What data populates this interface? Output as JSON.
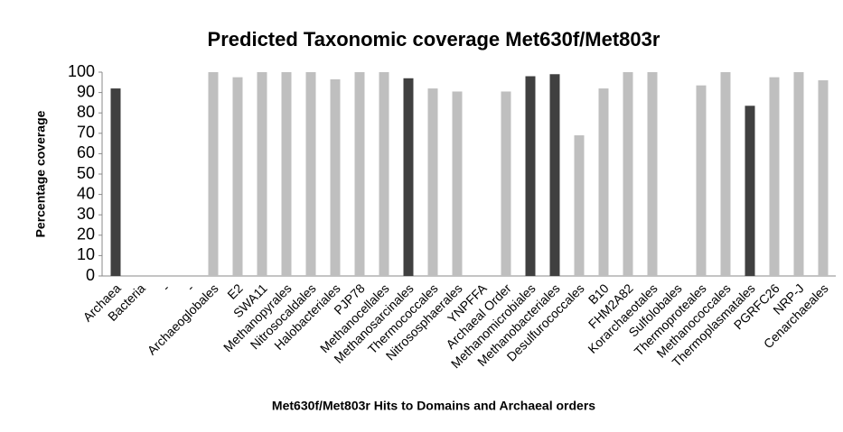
{
  "chart_data": {
    "type": "bar",
    "title": "Predicted Taxonomic coverage Met630f/Met803r",
    "x_label": "Met630f/Met803r Hits to Domains and Archaeal orders",
    "y_label": "Percentage coverage",
    "categories": [
      "Archaea",
      "Bacteria",
      "-",
      "-",
      "Archaeoglobales",
      "E2",
      "SWA11",
      "Methanopyrales",
      "Nitrosocaldales",
      "Halobacteriales",
      "PJP78",
      "Methanocellales",
      "Methanosarcinales",
      "Thermococcales",
      "Nitrososphaerales",
      "YNPFFA",
      "Archaeal Order",
      "Methanomicrobiales",
      "Methanobacteriales",
      "Desulfurococcales",
      "B10",
      "FHM2A82",
      "Korarchaeotales",
      "Sulfolobales",
      "Thermoproteales",
      "Methanococcales",
      "Thermoplasmatales",
      "PGRFC26",
      "NRP-J",
      "Cenarchaeales"
    ],
    "values": [
      92,
      0,
      0,
      0,
      100,
      97.5,
      100,
      100,
      100,
      96.5,
      100,
      100,
      97,
      92,
      90.5,
      0,
      90.5,
      98,
      99,
      69,
      92,
      100,
      100,
      0,
      93.5,
      100,
      83.5,
      97.5,
      100,
      96
    ],
    "colors": [
      "#404040",
      "#bfbfbf",
      "#bfbfbf",
      "#bfbfbf",
      "#bfbfbf",
      "#bfbfbf",
      "#bfbfbf",
      "#bfbfbf",
      "#bfbfbf",
      "#bfbfbf",
      "#bfbfbf",
      "#bfbfbf",
      "#404040",
      "#bfbfbf",
      "#bfbfbf",
      "#bfbfbf",
      "#bfbfbf",
      "#404040",
      "#404040",
      "#bfbfbf",
      "#bfbfbf",
      "#bfbfbf",
      "#bfbfbf",
      "#bfbfbf",
      "#bfbfbf",
      "#bfbfbf",
      "#404040",
      "#bfbfbf",
      "#bfbfbf",
      "#bfbfbf"
    ],
    "ylim": [
      0,
      100
    ],
    "yticks": [
      0,
      10,
      20,
      30,
      40,
      50,
      60,
      70,
      80,
      90,
      100
    ],
    "grid": false
  }
}
